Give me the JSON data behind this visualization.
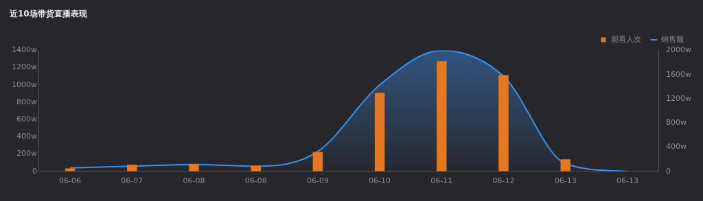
{
  "chart_data": {
    "type": "bar",
    "title": "近10场带货直播表现",
    "categories": [
      "06-06",
      "06-07",
      "06-08",
      "06-08",
      "06-09",
      "06-10",
      "06-11",
      "06-12",
      "06-13",
      "06-13"
    ],
    "series": [
      {
        "name": "销售额",
        "type": "area",
        "color": "#3b8fe8",
        "values": [
          40,
          60,
          80,
          60,
          230,
          1000,
          1400,
          1100,
          90,
          0
        ]
      },
      {
        "name": "观看人次",
        "axis": "y2",
        "color": "#e8781e",
        "values": [
          50,
          110,
          120,
          90,
          320,
          1300,
          1820,
          1590,
          200,
          null
        ]
      }
    ],
    "ylim": [
      0,
      1400
    ],
    "yticks": [
      0,
      {
        "value": 200,
        "label": "200w"
      },
      {
        "value": 400,
        "label": "400w"
      },
      {
        "value": 600,
        "label": "600w"
      },
      {
        "value": 800,
        "label": "800w"
      },
      {
        "value": 1000,
        "label": "1000w"
      },
      {
        "value": 1200,
        "label": "1200w"
      },
      {
        "value": 1400,
        "label": "1400w"
      }
    ],
    "y2lim": [
      0,
      2000
    ],
    "y2ticks": [
      0,
      {
        "value": 400,
        "label": "400w"
      },
      {
        "value": 800,
        "label": "800w"
      },
      {
        "value": 1200,
        "label": "1200w"
      },
      {
        "value": 1600,
        "label": "1600w"
      },
      {
        "value": 2000,
        "label": "2000w"
      }
    ],
    "legend": "top right",
    "grid": false,
    "marker": "none"
  }
}
